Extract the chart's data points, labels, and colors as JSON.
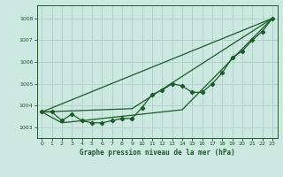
{
  "title": "Graphe pression niveau de la mer (hPa)",
  "bg_color": "#cce8e0",
  "grid_color": "#b0d4cc",
  "line_color": "#1a5c28",
  "xlim": [
    -0.5,
    23.5
  ],
  "ylim": [
    1002.5,
    1008.6
  ],
  "yticks": [
    1003,
    1004,
    1005,
    1006,
    1007,
    1008
  ],
  "xticks": [
    0,
    1,
    2,
    3,
    4,
    5,
    6,
    7,
    8,
    9,
    10,
    11,
    12,
    13,
    14,
    15,
    16,
    17,
    18,
    19,
    20,
    21,
    22,
    23
  ],
  "series1": [
    1003.7,
    1003.7,
    1003.3,
    1003.6,
    1003.3,
    1003.2,
    1003.2,
    1003.3,
    1003.4,
    1003.4,
    1003.9,
    1004.5,
    1004.7,
    1005.0,
    1004.9,
    1004.6,
    1004.6,
    1005.0,
    1005.5,
    1006.2,
    1006.5,
    1007.0,
    1007.4,
    1008.0
  ],
  "trend1_x": [
    0,
    23
  ],
  "trend1_y": [
    1003.7,
    1008.0
  ],
  "trend2_x": [
    0,
    9,
    23
  ],
  "trend2_y": [
    1003.7,
    1003.85,
    1008.0
  ],
  "trend3_x": [
    0,
    2,
    14,
    23
  ],
  "trend3_y": [
    1003.7,
    1003.2,
    1003.8,
    1008.0
  ]
}
